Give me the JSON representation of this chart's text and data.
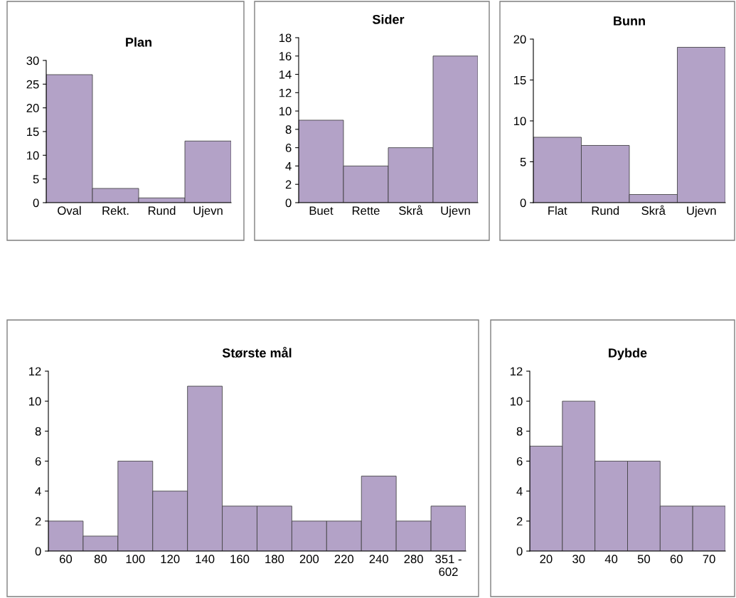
{
  "chart_data": [
    {
      "type": "bar",
      "title": "Plan",
      "categories": [
        "Oval",
        "Rekt.",
        "Rund",
        "Ujevn"
      ],
      "values": [
        27,
        3,
        1,
        13
      ],
      "color": "#b3a2c7",
      "ylim": [
        0,
        30
      ],
      "yticks": [
        0,
        5,
        10,
        15,
        20,
        25,
        30
      ],
      "grid": false
    },
    {
      "type": "bar",
      "title": "Sider",
      "categories": [
        "Buet",
        "Rette",
        "Skrå",
        "Ujevn"
      ],
      "values": [
        9,
        4,
        6,
        16
      ],
      "color": "#b3a2c7",
      "ylim": [
        0,
        18
      ],
      "yticks": [
        0,
        2,
        4,
        6,
        8,
        10,
        12,
        14,
        16,
        18
      ],
      "grid": false
    },
    {
      "type": "bar",
      "title": "Bunn",
      "categories": [
        "Flat",
        "Rund",
        "Skrå",
        "Ujevn"
      ],
      "values": [
        8,
        7,
        1,
        19
      ],
      "color": "#b3a2c7",
      "ylim": [
        0,
        20
      ],
      "yticks": [
        0,
        5,
        10,
        15,
        20
      ],
      "grid": false
    },
    {
      "type": "bar",
      "title": "Største mål",
      "categories": [
        "60",
        "80",
        "100",
        "120",
        "140",
        "160",
        "180",
        "200",
        "220",
        "240",
        "280",
        "351 -\n602"
      ],
      "values": [
        2,
        1,
        6,
        4,
        11,
        3,
        3,
        2,
        2,
        5,
        2,
        3
      ],
      "color": "#b3a2c7",
      "ylim": [
        0,
        12
      ],
      "yticks": [
        0,
        2,
        4,
        6,
        8,
        10,
        12
      ],
      "grid": false
    },
    {
      "type": "bar",
      "title": "Dybde",
      "categories": [
        "20",
        "30",
        "40",
        "50",
        "60",
        "70"
      ],
      "values": [
        7,
        10,
        6,
        6,
        3,
        3
      ],
      "color": "#b3a2c7",
      "ylim": [
        0,
        12
      ],
      "yticks": [
        0,
        2,
        4,
        6,
        8,
        10,
        12
      ],
      "grid": false
    }
  ]
}
